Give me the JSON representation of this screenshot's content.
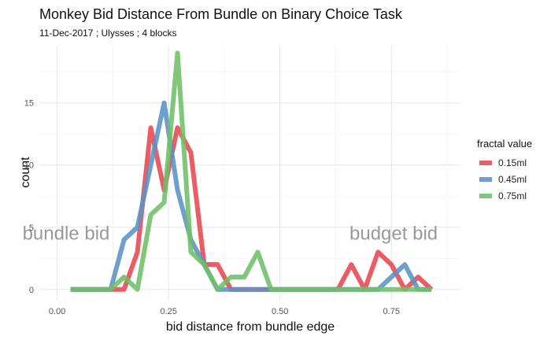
{
  "chart_data": {
    "type": "line",
    "title": "Monkey Bid Distance From Bundle on Binary Choice Task",
    "subtitle": "11-Dec-2017 ; Ulysses ; 4 blocks",
    "xlabel": "bid distance from bundle edge",
    "ylabel": "count",
    "xlim": [
      -0.04,
      0.905
    ],
    "ylim": [
      -0.9,
      19.6
    ],
    "x_ticks": [
      0.0,
      0.25,
      0.5,
      0.75
    ],
    "x_tick_labels": [
      "0.00",
      "0.25",
      "0.50",
      "0.75"
    ],
    "y_ticks": [
      0,
      5,
      10,
      15
    ],
    "y_tick_labels": [
      "0",
      "5",
      "10",
      "15"
    ],
    "grid": true,
    "legend": {
      "title": "fractal value",
      "position": "right"
    },
    "annotations": [
      {
        "text": "bundle bid",
        "x": 0.02,
        "y": 4
      },
      {
        "text": "budget bid",
        "x": 0.755,
        "y": 4
      }
    ],
    "series": [
      {
        "name": "0.15ml",
        "color": "#e8474f",
        "x": [
          0.03,
          0.06,
          0.09,
          0.12,
          0.15,
          0.18,
          0.21,
          0.24,
          0.27,
          0.3,
          0.33,
          0.36,
          0.39,
          0.42,
          0.45,
          0.48,
          0.51,
          0.54,
          0.57,
          0.6,
          0.63,
          0.66,
          0.69,
          0.72,
          0.75,
          0.78,
          0.81,
          0.84
        ],
        "values": [
          0,
          0,
          0,
          0,
          0,
          3,
          13,
          8,
          13,
          11,
          2,
          2,
          0,
          0,
          0,
          0,
          0,
          0,
          0,
          0,
          0,
          2,
          0,
          3,
          2,
          0,
          1,
          0
        ]
      },
      {
        "name": "0.45ml",
        "color": "#5b93c4",
        "x": [
          0.03,
          0.06,
          0.09,
          0.12,
          0.15,
          0.18,
          0.21,
          0.24,
          0.27,
          0.3,
          0.33,
          0.36,
          0.39,
          0.42,
          0.45,
          0.48,
          0.51,
          0.54,
          0.57,
          0.6,
          0.63,
          0.66,
          0.69,
          0.72,
          0.75,
          0.78,
          0.81,
          0.84
        ],
        "values": [
          0,
          0,
          0,
          0,
          4,
          5,
          10,
          15,
          8,
          4,
          2,
          0,
          0,
          0,
          0,
          0,
          0,
          0,
          0,
          0,
          0,
          0,
          0,
          0,
          1,
          2,
          0,
          0
        ]
      },
      {
        "name": "0.75ml",
        "color": "#6fbf66",
        "x": [
          0.03,
          0.06,
          0.09,
          0.12,
          0.15,
          0.18,
          0.21,
          0.24,
          0.27,
          0.3,
          0.33,
          0.36,
          0.39,
          0.42,
          0.45,
          0.48,
          0.51,
          0.54,
          0.57,
          0.6,
          0.63,
          0.66,
          0.69,
          0.72,
          0.75,
          0.78,
          0.81,
          0.84
        ],
        "values": [
          0,
          0,
          0,
          0,
          1,
          0,
          6,
          7,
          19,
          3,
          2,
          0,
          1,
          1,
          3,
          0,
          0,
          0,
          0,
          0,
          0,
          0,
          0,
          0,
          0,
          0,
          0,
          0
        ]
      }
    ]
  }
}
